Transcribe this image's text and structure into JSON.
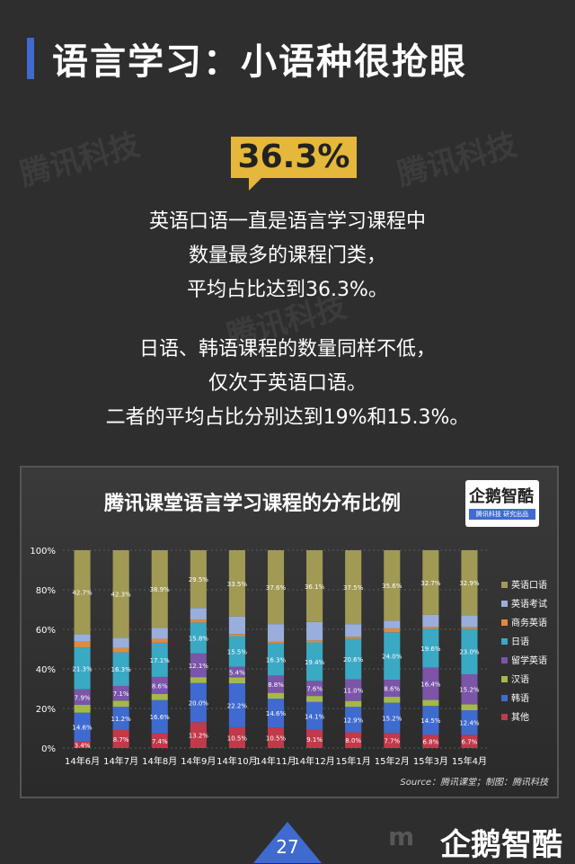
{
  "header": {
    "title": "语言学习：小语种很抢眼"
  },
  "watermark": "腾讯科技",
  "highlight": {
    "value": "36.3%"
  },
  "paragraph1": [
    "英语口语一直是语言学习课程中",
    "数量最多的课程门类，",
    "平均占比达到36.3%。"
  ],
  "paragraph2": [
    "日语、韩语课程的数量同样不低，",
    "仅次于英语口语。",
    "二者的平均占比分别达到19%和15.3%。"
  ],
  "logo": {
    "text": "企鹅智酷",
    "sub": "腾讯科技 研究出品"
  },
  "footer": {
    "page": "27",
    "logo": "企鹅智酷",
    "watermark": "m"
  },
  "chart_data": {
    "type": "bar",
    "stacked": true,
    "title": "腾讯课堂语言学习课程的分布比例",
    "source": "Source：腾讯课堂；制图：腾讯科技",
    "categories": [
      "14年6月",
      "14年7月",
      "14年8月",
      "14年9月",
      "14年10月",
      "14年11月",
      "14年12月",
      "15年1月",
      "15年2月",
      "15年3月",
      "15年4月"
    ],
    "yticks": [
      "0%",
      "20%",
      "40%",
      "60%",
      "80%",
      "100%"
    ],
    "ylim": [
      0,
      100
    ],
    "legend_position": "right",
    "series": [
      {
        "name": "其他",
        "color": "#c2394a",
        "values": [
          3.4,
          8.7,
          7.4,
          13.2,
          10.5,
          10.5,
          9.1,
          8.0,
          7.7,
          6.8,
          6.7
        ],
        "labels": [
          "3.4%",
          "8.7%",
          "7.4%",
          "13.2%",
          "10.5%",
          "10.5%",
          "9.1%",
          "8.0%",
          "7.7%",
          "6.8%",
          "6.7%"
        ]
      },
      {
        "name": "韩语",
        "color": "#3f6bd0",
        "values": [
          14.6,
          11.2,
          16.6,
          20.0,
          22.2,
          14.6,
          14.1,
          12.9,
          15.2,
          14.5,
          12.4
        ],
        "labels": [
          "14.6%",
          "11.2%",
          "16.6%",
          "20.0%",
          "22.2%",
          "14.6%",
          "14.1%",
          "12.9%",
          "15.2%",
          "14.5%",
          "12.4%"
        ]
      },
      {
        "name": "汉语",
        "color": "#a4b94a",
        "values": [
          4,
          3,
          3,
          3,
          3,
          3,
          3,
          3,
          3,
          3,
          3
        ],
        "labels": [
          "",
          "",
          "",
          "",
          "",
          "",
          "",
          "",
          "",
          "",
          ""
        ]
      },
      {
        "name": "留学英语",
        "color": "#7a55a8",
        "values": [
          7.9,
          7.1,
          8.6,
          12.1,
          5.4,
          8.8,
          7.6,
          11.0,
          8.6,
          16.4,
          15.2
        ],
        "labels": [
          "7.9%",
          "7.1%",
          "8.6%",
          "12.1%",
          "5.4%",
          "8.8%",
          "7.6%",
          "11.0%",
          "8.6%",
          "16.4%",
          "15.2%"
        ]
      },
      {
        "name": "日语",
        "color": "#3aa9c4",
        "values": [
          21.3,
          16.3,
          17.1,
          15.8,
          15.5,
          16.3,
          19.4,
          20.6,
          24.0,
          19.6,
          23.0
        ],
        "labels": [
          "21.3%",
          "16.3%",
          "17.1%",
          "15.8%",
          "15.5%",
          "16.3%",
          "19.4%",
          "20.6%",
          "24.0%",
          "19.6%",
          "23.0%"
        ]
      },
      {
        "name": "商务英语",
        "color": "#e08a3c",
        "values": [
          3,
          2,
          2,
          1.5,
          1,
          1,
          1,
          1,
          2,
          1,
          1
        ],
        "labels": [
          "",
          "",
          "",
          "",
          "",
          "",
          "",
          "",
          "",
          "",
          ""
        ]
      },
      {
        "name": "英语考试",
        "color": "#9aaedc",
        "values": [
          3.8,
          5.0,
          5.4,
          5.9,
          8.9,
          8.9,
          9.3,
          6.4,
          3.9,
          6.0,
          5.8
        ],
        "labels": [
          "",
          "",
          "",
          "",
          "",
          "",
          "",
          "",
          "",
          "",
          ""
        ]
      },
      {
        "name": "英语口语",
        "color": "#a09a55",
        "values": [
          42.7,
          42.3,
          38.9,
          29.5,
          33.5,
          37.6,
          36.1,
          37.5,
          35.6,
          32.7,
          32.9
        ],
        "labels": [
          "42.7%",
          "42.3%",
          "38.9%",
          "29.5%",
          "33.5%",
          "37.6%",
          "36.1%",
          "37.5%",
          "35.6%",
          "32.7%",
          "32.9%"
        ]
      }
    ]
  }
}
